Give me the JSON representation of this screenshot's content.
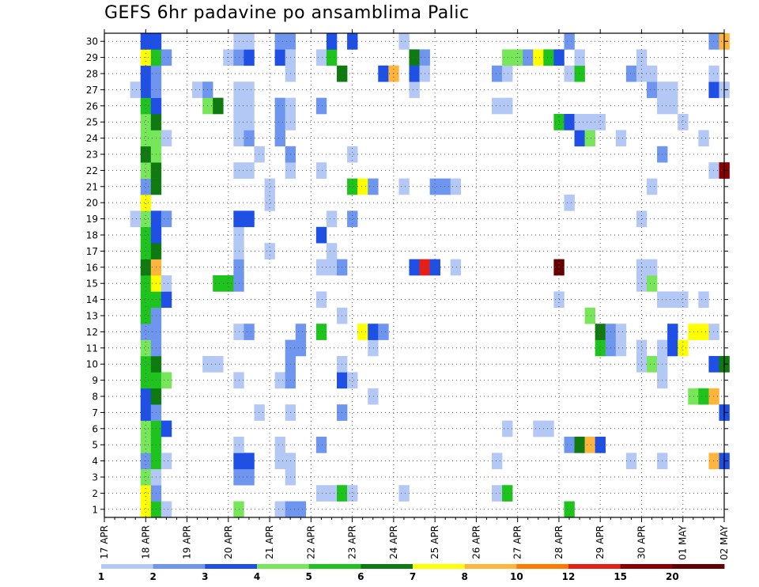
{
  "title": "GEFS 6hr padavine po ansamblima Palic",
  "chart_data": {
    "type": "heatmap",
    "title": "GEFS 6hr padavine po ansamblima Palic",
    "x_tick_labels": [
      "17 APR",
      "18 APR",
      "19 APR",
      "20 APR",
      "21 APR",
      "22 APR",
      "23 APR",
      "24 APR",
      "25 APR",
      "26 APR",
      "27 APR",
      "28 APR",
      "29 APR",
      "30 APR",
      "01 MAY",
      "02 MAY"
    ],
    "y_tick_labels": [
      "1",
      "2",
      "3",
      "4",
      "5",
      "6",
      "7",
      "8",
      "9",
      "10",
      "11",
      "12",
      "13",
      "14",
      "15",
      "16",
      "17",
      "18",
      "19",
      "20",
      "21",
      "22",
      "23",
      "24",
      "25",
      "26",
      "27",
      "28",
      "29",
      "30"
    ],
    "x_unit": "6-hour step from 17 APR 00Z",
    "x_range_steps": [
      0,
      60
    ],
    "y_range": [
      0,
      30
    ],
    "grid": true,
    "colorbar": {
      "labels": [
        "1",
        "2",
        "3",
        "4",
        "5",
        "6",
        "7",
        "8",
        "10",
        "12",
        "15",
        "20"
      ],
      "colors": [
        "#b4c8f5",
        "#6e96ee",
        "#1e4fe6",
        "#78e65a",
        "#1ec31e",
        "#0f7a0f",
        "#ffff00",
        "#ffb43c",
        "#ff7800",
        "#e61e14",
        "#8c0000",
        "#640000"
      ]
    },
    "cells_level_index_note": "each cell: [x_step, member, level] where level indexes colorbar.colors",
    "cells": [
      [
        4,
        0,
        6
      ],
      [
        4,
        1,
        6
      ],
      [
        4,
        2,
        3
      ],
      [
        4,
        3,
        1
      ],
      [
        4,
        4,
        3
      ],
      [
        4,
        5,
        3
      ],
      [
        4,
        6,
        2
      ],
      [
        4,
        7,
        2
      ],
      [
        4,
        8,
        4
      ],
      [
        4,
        9,
        4
      ],
      [
        4,
        10,
        3
      ],
      [
        4,
        11,
        1
      ],
      [
        4,
        12,
        4
      ],
      [
        4,
        13,
        4
      ],
      [
        4,
        14,
        4
      ],
      [
        4,
        15,
        5
      ],
      [
        4,
        16,
        4
      ],
      [
        4,
        17,
        4
      ],
      [
        4,
        18,
        3
      ],
      [
        4,
        19,
        6
      ],
      [
        4,
        20,
        1
      ],
      [
        4,
        21,
        3
      ],
      [
        4,
        22,
        5
      ],
      [
        4,
        23,
        3
      ],
      [
        4,
        24,
        3
      ],
      [
        4,
        25,
        4
      ],
      [
        4,
        26,
        2
      ],
      [
        4,
        27,
        2
      ],
      [
        4,
        28,
        6
      ],
      [
        4,
        29,
        2
      ],
      [
        3,
        18,
        0
      ],
      [
        3,
        26,
        0
      ],
      [
        5,
        0,
        4
      ],
      [
        5,
        1,
        1
      ],
      [
        5,
        2,
        0
      ],
      [
        5,
        3,
        4
      ],
      [
        5,
        4,
        4
      ],
      [
        5,
        5,
        4
      ],
      [
        5,
        6,
        1
      ],
      [
        5,
        7,
        5
      ],
      [
        5,
        8,
        4
      ],
      [
        5,
        9,
        5
      ],
      [
        5,
        10,
        1
      ],
      [
        5,
        11,
        1
      ],
      [
        5,
        12,
        1
      ],
      [
        5,
        13,
        4
      ],
      [
        5,
        14,
        6
      ],
      [
        5,
        15,
        7
      ],
      [
        5,
        16,
        5
      ],
      [
        5,
        17,
        2
      ],
      [
        5,
        18,
        2
      ],
      [
        5,
        20,
        5
      ],
      [
        5,
        21,
        5
      ],
      [
        5,
        22,
        3
      ],
      [
        5,
        23,
        3
      ],
      [
        5,
        24,
        5
      ],
      [
        5,
        25,
        2
      ],
      [
        5,
        26,
        1
      ],
      [
        5,
        27,
        1
      ],
      [
        5,
        28,
        4
      ],
      [
        5,
        29,
        2
      ],
      [
        6,
        0,
        0
      ],
      [
        6,
        3,
        0
      ],
      [
        6,
        5,
        2
      ],
      [
        6,
        8,
        3
      ],
      [
        6,
        13,
        2
      ],
      [
        6,
        14,
        0
      ],
      [
        6,
        18,
        1
      ],
      [
        6,
        23,
        0
      ],
      [
        6,
        28,
        1
      ],
      [
        10,
        9,
        0
      ],
      [
        11,
        9,
        0
      ],
      [
        10,
        25,
        3
      ],
      [
        11,
        25,
        5
      ],
      [
        9,
        26,
        0
      ],
      [
        10,
        26,
        1
      ],
      [
        12,
        28,
        0
      ],
      [
        13,
        28,
        1
      ],
      [
        11,
        14,
        4
      ],
      [
        12,
        14,
        4
      ],
      [
        13,
        14,
        1
      ],
      [
        13,
        15,
        1
      ],
      [
        13,
        16,
        0
      ],
      [
        13,
        17,
        0
      ],
      [
        13,
        0,
        3
      ],
      [
        13,
        2,
        1
      ],
      [
        13,
        3,
        2
      ],
      [
        13,
        4,
        0
      ],
      [
        14,
        2,
        1
      ],
      [
        14,
        3,
        2
      ],
      [
        13,
        8,
        0
      ],
      [
        13,
        11,
        0
      ],
      [
        14,
        11,
        1
      ],
      [
        13,
        21,
        0
      ],
      [
        14,
        21,
        0
      ],
      [
        13,
        23,
        0
      ],
      [
        14,
        23,
        1
      ],
      [
        13,
        24,
        0
      ],
      [
        13,
        25,
        0
      ],
      [
        13,
        26,
        0
      ],
      [
        14,
        24,
        0
      ],
      [
        14,
        25,
        0
      ],
      [
        14,
        26,
        0
      ],
      [
        13,
        18,
        2
      ],
      [
        14,
        18,
        2
      ],
      [
        14,
        28,
        2
      ],
      [
        13,
        29,
        0
      ],
      [
        14,
        29,
        0
      ],
      [
        15,
        22,
        0
      ],
      [
        15,
        6,
        0
      ],
      [
        16,
        16,
        0
      ],
      [
        16,
        19,
        0
      ],
      [
        16,
        20,
        0
      ],
      [
        17,
        0,
        0
      ],
      [
        17,
        3,
        0
      ],
      [
        17,
        4,
        0
      ],
      [
        17,
        8,
        0
      ],
      [
        17,
        23,
        1
      ],
      [
        17,
        24,
        1
      ],
      [
        17,
        25,
        1
      ],
      [
        17,
        28,
        2
      ],
      [
        17,
        29,
        1
      ],
      [
        18,
        29,
        1
      ],
      [
        18,
        0,
        1
      ],
      [
        18,
        2,
        0
      ],
      [
        18,
        3,
        0
      ],
      [
        18,
        6,
        0
      ],
      [
        18,
        8,
        1
      ],
      [
        18,
        9,
        1
      ],
      [
        18,
        10,
        1
      ],
      [
        18,
        21,
        0
      ],
      [
        18,
        22,
        1
      ],
      [
        18,
        24,
        0
      ],
      [
        18,
        25,
        0
      ],
      [
        18,
        27,
        0
      ],
      [
        18,
        28,
        0
      ],
      [
        19,
        0,
        1
      ],
      [
        19,
        10,
        1
      ],
      [
        19,
        11,
        1
      ],
      [
        21,
        1,
        0
      ],
      [
        21,
        4,
        1
      ],
      [
        21,
        11,
        4
      ],
      [
        21,
        13,
        0
      ],
      [
        21,
        15,
        0
      ],
      [
        21,
        17,
        2
      ],
      [
        21,
        21,
        0
      ],
      [
        21,
        25,
        1
      ],
      [
        21,
        28,
        0
      ],
      [
        22,
        1,
        0
      ],
      [
        22,
        15,
        0
      ],
      [
        22,
        16,
        0
      ],
      [
        22,
        18,
        0
      ],
      [
        22,
        28,
        4
      ],
      [
        22,
        29,
        2
      ],
      [
        23,
        1,
        4
      ],
      [
        23,
        6,
        1
      ],
      [
        23,
        8,
        2
      ],
      [
        23,
        9,
        0
      ],
      [
        23,
        12,
        0
      ],
      [
        23,
        15,
        1
      ],
      [
        23,
        27,
        5
      ],
      [
        24,
        1,
        0
      ],
      [
        24,
        8,
        0
      ],
      [
        24,
        18,
        1
      ],
      [
        24,
        20,
        4
      ],
      [
        24,
        22,
        0
      ],
      [
        24,
        29,
        2
      ],
      [
        25,
        20,
        6
      ],
      [
        25,
        11,
        6
      ],
      [
        26,
        7,
        0
      ],
      [
        26,
        10,
        0
      ],
      [
        26,
        20,
        1
      ],
      [
        26,
        11,
        2
      ],
      [
        27,
        27,
        2
      ],
      [
        27,
        11,
        1
      ],
      [
        28,
        27,
        7
      ],
      [
        29,
        1,
        0
      ],
      [
        29,
        20,
        0
      ],
      [
        29,
        29,
        0
      ],
      [
        30,
        15,
        2
      ],
      [
        30,
        26,
        0
      ],
      [
        30,
        28,
        5
      ],
      [
        30,
        27,
        2
      ],
      [
        31,
        15,
        9
      ],
      [
        31,
        28,
        1
      ],
      [
        31,
        27,
        0
      ],
      [
        32,
        15,
        2
      ],
      [
        32,
        20,
        1
      ],
      [
        33,
        20,
        1
      ],
      [
        34,
        20,
        0
      ],
      [
        34,
        15,
        0
      ],
      [
        38,
        1,
        0
      ],
      [
        38,
        3,
        0
      ],
      [
        38,
        27,
        1
      ],
      [
        38,
        25,
        0
      ],
      [
        39,
        1,
        4
      ],
      [
        39,
        5,
        0
      ],
      [
        39,
        25,
        0
      ],
      [
        39,
        27,
        0
      ],
      [
        39,
        28,
        3
      ],
      [
        40,
        28,
        3
      ],
      [
        41,
        28,
        1
      ],
      [
        42,
        28,
        6
      ],
      [
        43,
        28,
        4
      ],
      [
        44,
        28,
        2
      ],
      [
        42,
        5,
        0
      ],
      [
        43,
        5,
        0
      ],
      [
        44,
        13,
        0
      ],
      [
        44,
        15,
        11
      ],
      [
        44,
        24,
        4
      ],
      [
        45,
        0,
        4
      ],
      [
        45,
        4,
        1
      ],
      [
        45,
        19,
        0
      ],
      [
        45,
        24,
        2
      ],
      [
        45,
        27,
        0
      ],
      [
        45,
        29,
        1
      ],
      [
        46,
        4,
        5
      ],
      [
        46,
        23,
        2
      ],
      [
        46,
        24,
        0
      ],
      [
        46,
        27,
        4
      ],
      [
        46,
        28,
        0
      ],
      [
        47,
        4,
        7
      ],
      [
        47,
        12,
        3
      ],
      [
        47,
        23,
        3
      ],
      [
        47,
        24,
        0
      ],
      [
        48,
        4,
        2
      ],
      [
        48,
        10,
        4
      ],
      [
        48,
        11,
        5
      ],
      [
        48,
        24,
        0
      ],
      [
        49,
        10,
        1
      ],
      [
        49,
        11,
        1
      ],
      [
        50,
        10,
        0
      ],
      [
        50,
        11,
        0
      ],
      [
        50,
        23,
        0
      ],
      [
        51,
        3,
        0
      ],
      [
        51,
        27,
        1
      ],
      [
        52,
        18,
        0
      ],
      [
        52,
        10,
        0
      ],
      [
        52,
        9,
        0
      ],
      [
        52,
        14,
        0
      ],
      [
        52,
        15,
        0
      ],
      [
        52,
        27,
        0
      ],
      [
        52,
        28,
        0
      ],
      [
        53,
        9,
        3
      ],
      [
        53,
        14,
        3
      ],
      [
        53,
        15,
        0
      ],
      [
        53,
        20,
        0
      ],
      [
        53,
        26,
        1
      ],
      [
        53,
        27,
        0
      ],
      [
        54,
        8,
        0
      ],
      [
        54,
        9,
        0
      ],
      [
        54,
        10,
        0
      ],
      [
        54,
        3,
        0
      ],
      [
        54,
        13,
        0
      ],
      [
        54,
        22,
        1
      ],
      [
        54,
        25,
        0
      ],
      [
        54,
        26,
        0
      ],
      [
        55,
        10,
        2
      ],
      [
        55,
        11,
        2
      ],
      [
        55,
        13,
        0
      ],
      [
        55,
        25,
        0
      ],
      [
        55,
        26,
        0
      ],
      [
        56,
        10,
        6
      ],
      [
        56,
        13,
        0
      ],
      [
        56,
        24,
        0
      ],
      [
        57,
        11,
        6
      ],
      [
        57,
        7,
        3
      ],
      [
        58,
        11,
        6
      ],
      [
        58,
        7,
        4
      ],
      [
        58,
        23,
        0
      ],
      [
        58,
        13,
        0
      ],
      [
        59,
        7,
        7
      ],
      [
        59,
        3,
        7
      ],
      [
        59,
        9,
        2
      ],
      [
        59,
        11,
        0
      ],
      [
        59,
        26,
        2
      ],
      [
        59,
        27,
        0
      ],
      [
        59,
        29,
        1
      ],
      [
        59,
        21,
        0
      ],
      [
        60,
        9,
        5
      ],
      [
        60,
        6,
        2
      ],
      [
        60,
        3,
        2
      ],
      [
        60,
        21,
        10
      ],
      [
        60,
        29,
        7
      ],
      [
        60,
        26,
        0
      ]
    ]
  }
}
